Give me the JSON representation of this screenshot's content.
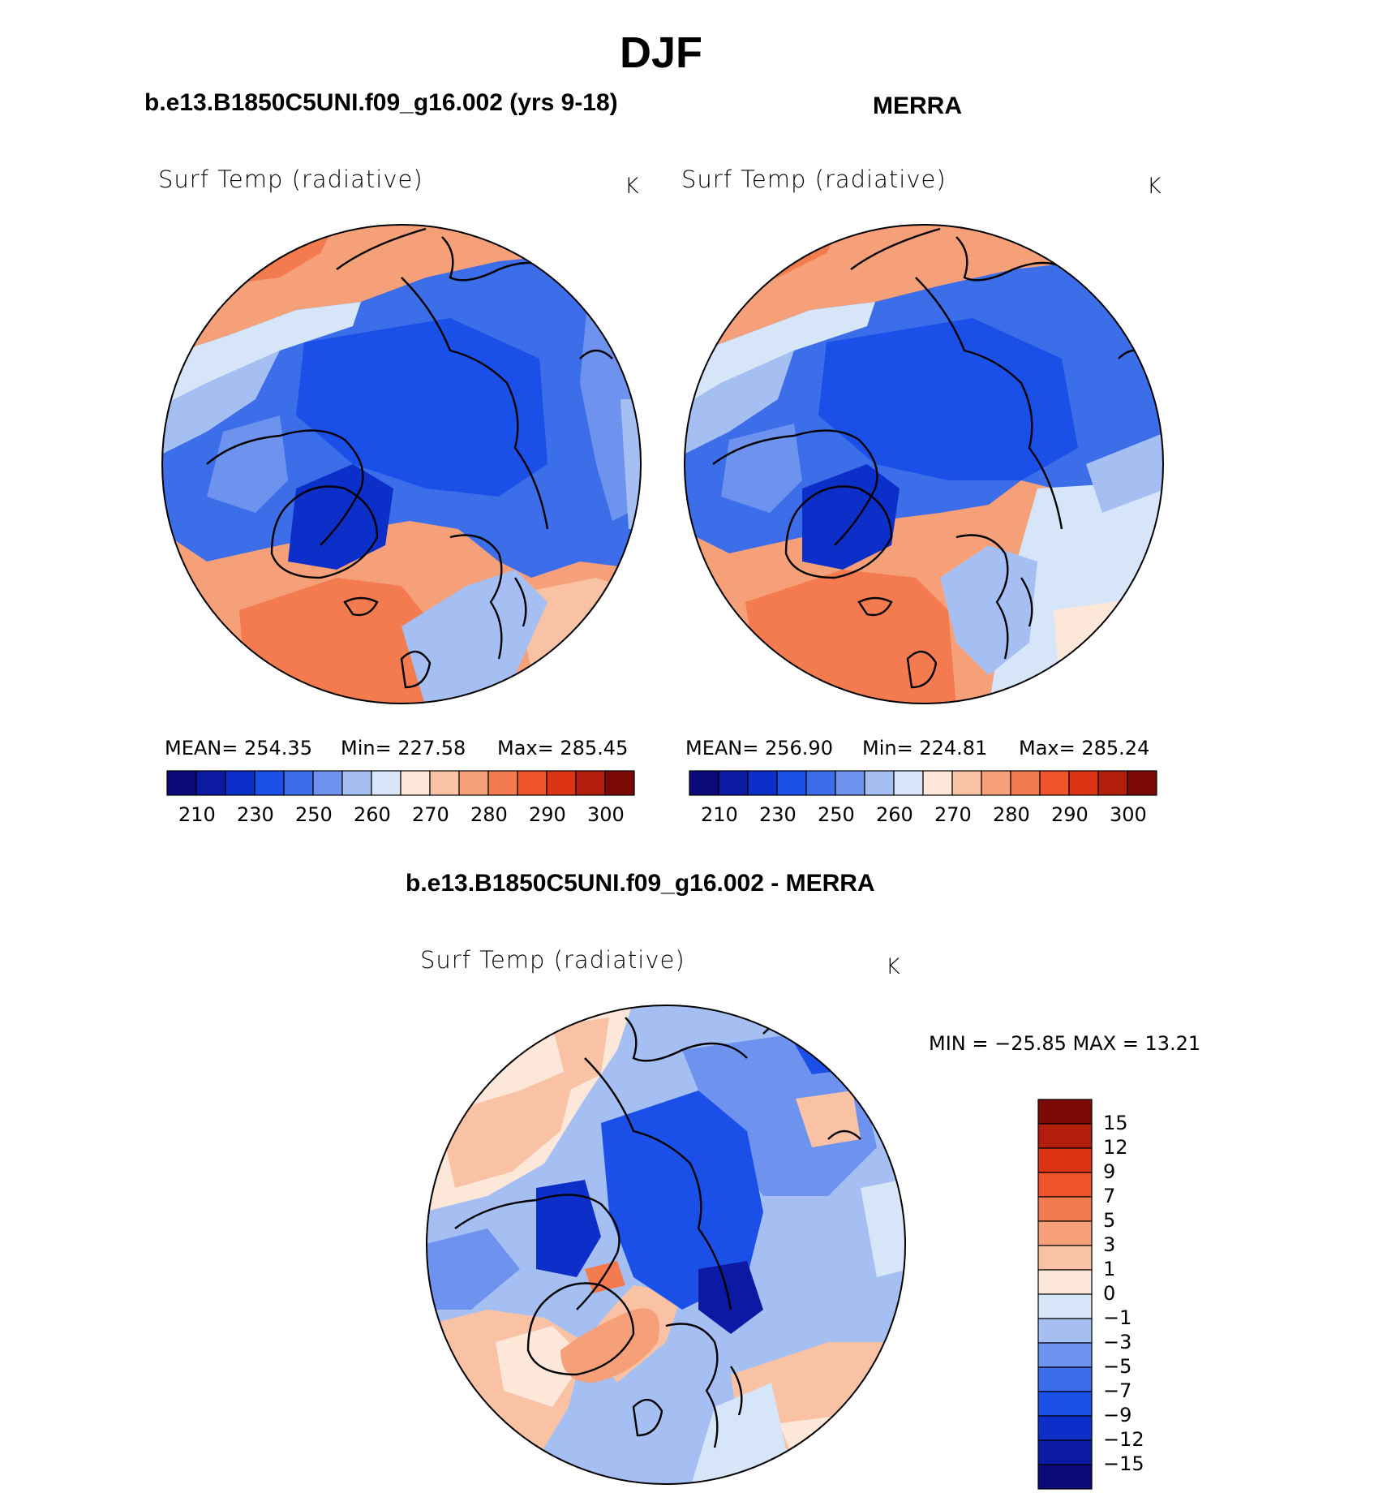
{
  "chart_data": [
    {
      "type": "heatmap",
      "title": "b.e13.B1850C5UNI.f09_g16.002 (yrs 9-18)",
      "variable": "Surf Temp (radiative)",
      "units": "K",
      "projection": "north polar stereographic",
      "stats": {
        "mean": "MEAN= 254.35",
        "min": "Min= 227.58",
        "max": "Max= 285.45"
      },
      "colorbar_orientation": "horizontal",
      "colorbar_ticks": [
        "210",
        "230",
        "250",
        "260",
        "270",
        "280",
        "290",
        "300"
      ]
    },
    {
      "type": "heatmap",
      "title": "MERRA",
      "variable": "Surf Temp (radiative)",
      "units": "K",
      "projection": "north polar stereographic",
      "stats": {
        "mean": "MEAN= 256.90",
        "min": "Min= 224.81",
        "max": "Max= 285.24"
      },
      "colorbar_orientation": "horizontal",
      "colorbar_ticks": [
        "210",
        "230",
        "250",
        "260",
        "270",
        "280",
        "290",
        "300"
      ]
    },
    {
      "type": "heatmap",
      "title": "b.e13.B1850C5UNI.f09_g16.002 - MERRA",
      "variable": "Surf Temp (radiative)",
      "units": "K",
      "projection": "north polar stereographic",
      "stats": {
        "minmax": "MIN = −25.85 MAX =   13.21"
      },
      "colorbar_orientation": "vertical",
      "colorbar_ticks": [
        "15",
        "12",
        "9",
        "7",
        "5",
        "3",
        "1",
        "0",
        "−1",
        "−3",
        "−5",
        "−7",
        "−9",
        "−12",
        "−15"
      ]
    }
  ],
  "page": {
    "season": "DJF"
  },
  "colors": {
    "temp_scale": [
      "#0a0a7a",
      "#0b1aa3",
      "#0c2fc9",
      "#1a4fe8",
      "#3b6ee8",
      "#6e93ee",
      "#a6bff2",
      "#d6e6f8",
      "#fde7d8",
      "#f9c2a4",
      "#f6a07a",
      "#f47a4f",
      "#f1542a",
      "#dc3414",
      "#b11e0c",
      "#7b0a04"
    ],
    "diff_scale": [
      "#7b0a04",
      "#b11e0c",
      "#dc3414",
      "#f1542a",
      "#f47a4f",
      "#f6a07a",
      "#f9c2a4",
      "#fde7d8",
      "#d6e6f8",
      "#a6bff2",
      "#6e93ee",
      "#3b6ee8",
      "#1a4fe8",
      "#0c2fc9",
      "#0b1aa3",
      "#0a0a7a"
    ]
  }
}
